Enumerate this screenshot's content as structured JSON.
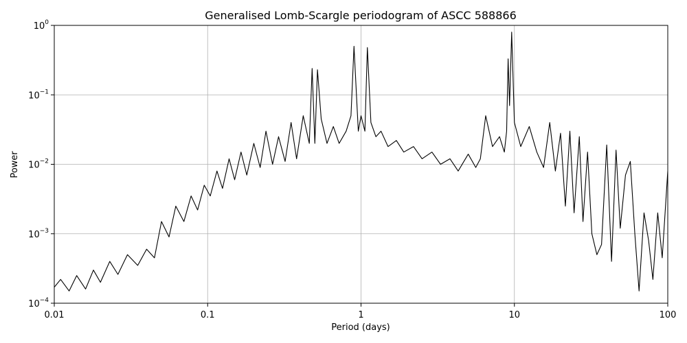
{
  "chart_data": {
    "type": "line",
    "title": "Generalised Lomb-Scargle periodogram of ASCC 588866",
    "xlabel": "Period (days)",
    "ylabel": "Power",
    "xscale": "log",
    "yscale": "log",
    "xlim": [
      0.01,
      100
    ],
    "ylim": [
      0.0001,
      1
    ],
    "grid": true,
    "x_ticks": [
      {
        "value": 0.01,
        "label": "0.01"
      },
      {
        "value": 0.1,
        "label": "0.1"
      },
      {
        "value": 1,
        "label": "1"
      },
      {
        "value": 10,
        "label": "10"
      },
      {
        "value": 100,
        "label": "100"
      }
    ],
    "y_ticks": [
      {
        "value": 0.0001,
        "base": "10",
        "exp": "−4"
      },
      {
        "value": 0.001,
        "base": "10",
        "exp": "−3"
      },
      {
        "value": 0.01,
        "base": "10",
        "exp": "−2"
      },
      {
        "value": 0.1,
        "base": "10",
        "exp": "−1"
      },
      {
        "value": 1,
        "base": "10",
        "exp": "0"
      }
    ],
    "series": [
      {
        "x": [
          0.01,
          0.011,
          0.0125,
          0.014,
          0.016,
          0.018,
          0.02,
          0.023,
          0.026,
          0.03,
          0.035,
          0.04,
          0.045,
          0.05,
          0.056,
          0.062,
          0.07,
          0.078,
          0.086,
          0.095,
          0.104,
          0.115,
          0.125,
          0.138,
          0.15,
          0.165,
          0.18,
          0.2,
          0.22,
          0.24,
          0.265,
          0.29,
          0.32,
          0.35,
          0.38,
          0.42,
          0.46,
          0.48,
          0.5,
          0.52,
          0.55,
          0.6,
          0.66,
          0.72,
          0.8,
          0.86,
          0.9,
          0.96,
          1.0,
          1.06,
          1.1,
          1.16,
          1.25,
          1.35,
          1.5,
          1.7,
          1.9,
          2.2,
          2.5,
          2.9,
          3.3,
          3.8,
          4.3,
          5.0,
          5.6,
          6.0,
          6.5,
          7.2,
          8.0,
          8.6,
          8.9,
          9.1,
          9.3,
          9.6,
          10.0,
          11.0,
          12.5,
          14.0,
          15.5,
          17.0,
          18.5,
          20.0,
          21.5,
          23.0,
          24.5,
          26.5,
          28.0,
          30.0,
          32.0,
          34.5,
          37.0,
          40.0,
          43.0,
          46.0,
          49.0,
          53.0,
          57.0,
          61.0,
          65.0,
          70.0,
          75.0,
          80.0,
          86.0,
          92.0,
          100.0
        ],
        "y": [
          0.00017,
          0.00022,
          0.00015,
          0.00025,
          0.00016,
          0.0003,
          0.0002,
          0.0004,
          0.00026,
          0.0005,
          0.00035,
          0.0006,
          0.00045,
          0.0015,
          0.0009,
          0.0025,
          0.0015,
          0.0035,
          0.0022,
          0.005,
          0.0035,
          0.008,
          0.0045,
          0.012,
          0.006,
          0.015,
          0.007,
          0.02,
          0.009,
          0.03,
          0.01,
          0.025,
          0.011,
          0.04,
          0.012,
          0.05,
          0.02,
          0.24,
          0.02,
          0.23,
          0.045,
          0.02,
          0.035,
          0.02,
          0.03,
          0.05,
          0.5,
          0.03,
          0.05,
          0.03,
          0.48,
          0.04,
          0.025,
          0.03,
          0.018,
          0.022,
          0.015,
          0.018,
          0.012,
          0.015,
          0.01,
          0.012,
          0.008,
          0.014,
          0.009,
          0.012,
          0.05,
          0.018,
          0.025,
          0.015,
          0.03,
          0.33,
          0.07,
          0.8,
          0.04,
          0.018,
          0.035,
          0.015,
          0.009,
          0.04,
          0.008,
          0.028,
          0.0025,
          0.03,
          0.002,
          0.025,
          0.0015,
          0.015,
          0.001,
          0.0005,
          0.0007,
          0.019,
          0.0004,
          0.016,
          0.0012,
          0.007,
          0.011,
          0.001,
          0.00015,
          0.002,
          0.0008,
          0.00022,
          0.002,
          0.00045,
          0.008
        ]
      }
    ]
  }
}
